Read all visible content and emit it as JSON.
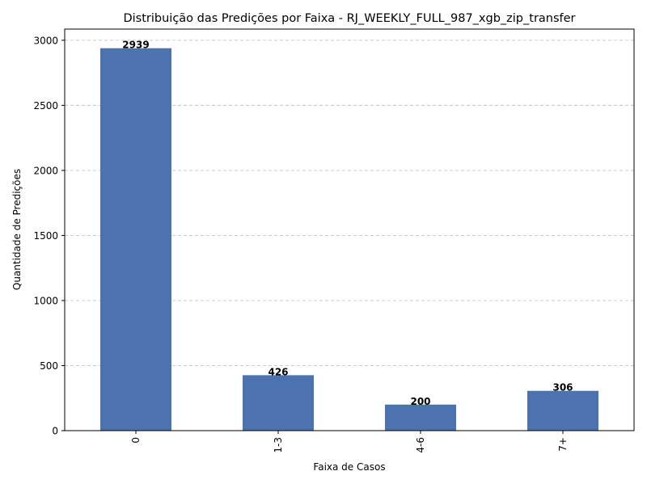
{
  "chart_data": {
    "type": "bar",
    "title": "Distribuição das Predições por Faixa - RJ_WEEKLY_FULL_987_xgb_zip_transfer",
    "xlabel": "Faixa de Casos",
    "ylabel": "Quantidade de Predições",
    "categories": [
      "0",
      "1-3",
      "4-6",
      "7+"
    ],
    "values": [
      2939,
      426,
      200,
      306
    ],
    "data_labels": [
      "2939",
      "426",
      "200",
      "306"
    ],
    "yticks": [
      0,
      500,
      1000,
      1500,
      2000,
      2500,
      3000
    ],
    "ylim": [
      0,
      3086
    ],
    "grid": "y-dashed",
    "legend": "none",
    "bar_color": "#4c72b0",
    "grid_color": "#c4c4c4"
  }
}
